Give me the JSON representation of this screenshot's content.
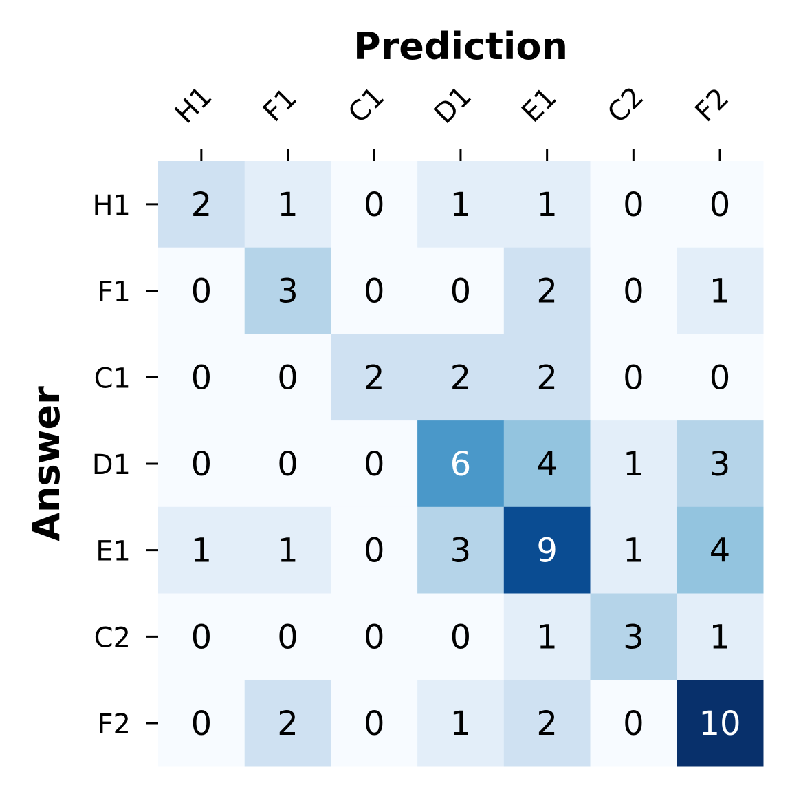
{
  "chart_data": {
    "type": "heatmap",
    "title": "",
    "xlabel": "Prediction",
    "ylabel": "Answer",
    "x_categories": [
      "H1",
      "F1",
      "C1",
      "D1",
      "E1",
      "C2",
      "F2"
    ],
    "y_categories": [
      "H1",
      "F1",
      "C1",
      "D1",
      "E1",
      "C2",
      "F2"
    ],
    "values": [
      [
        2,
        1,
        0,
        1,
        1,
        0,
        0
      ],
      [
        0,
        3,
        0,
        0,
        2,
        0,
        1
      ],
      [
        0,
        0,
        2,
        2,
        2,
        0,
        0
      ],
      [
        0,
        0,
        0,
        6,
        4,
        1,
        3
      ],
      [
        1,
        1,
        0,
        3,
        9,
        1,
        4
      ],
      [
        0,
        0,
        0,
        0,
        1,
        3,
        1
      ],
      [
        0,
        2,
        0,
        1,
        2,
        0,
        10
      ]
    ],
    "colormap": "Blues",
    "value_range": [
      0,
      10
    ],
    "x_axis_position": "top",
    "colorbar": false,
    "cell_colors": {
      "0": "#f7fbff",
      "1": "#e3eef9",
      "2": "#cfe1f2",
      "3": "#b5d4e9",
      "4": "#93c4df",
      "6": "#4a98c9",
      "9": "#0a4c92",
      "10": "#08306b"
    }
  }
}
